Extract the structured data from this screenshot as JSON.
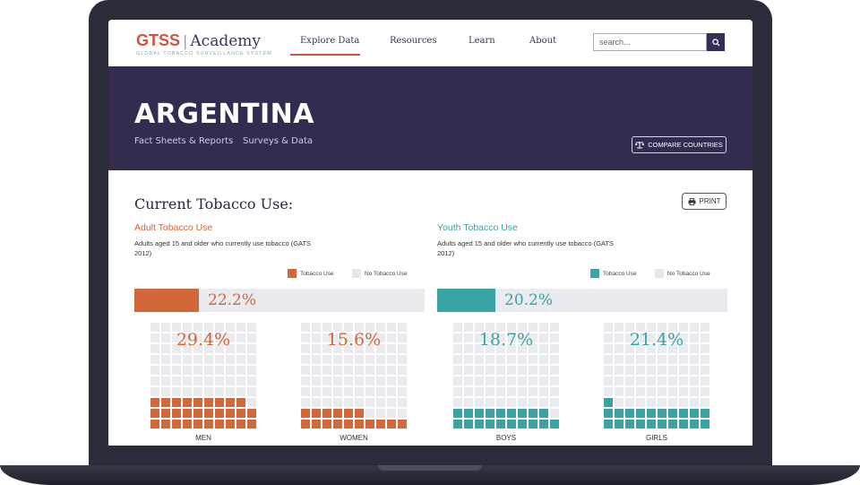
{
  "header": {
    "logo_gtss": "GTSS",
    "logo_academy": "Academy",
    "logo_subtitle": "GLOBAL TOBACCO SURVEILLANCE SYSTEM",
    "nav": [
      {
        "label": "Explore Data",
        "active": true
      },
      {
        "label": "Resources",
        "active": false
      },
      {
        "label": "Learn",
        "active": false
      },
      {
        "label": "About",
        "active": false
      }
    ],
    "search_placeholder": "search..."
  },
  "banner": {
    "country": "ARGENTINA",
    "links": [
      "Fact Sheets & Reports",
      "Surveys & Data"
    ],
    "compare_label": "COMPARE COUNTRIES"
  },
  "content": {
    "title": "Current Tobacco Use:",
    "print_label": "PRINT",
    "adult": {
      "title": "Adult Tobacco Use",
      "description": "Adults aged 15 and older who currently use tobacco (GATS 2012)",
      "legend_use": "Tobacco Use",
      "legend_no_use": "No Tobacco Use",
      "overall_value": "22.2%",
      "overall_fraction": 0.222,
      "groups": [
        {
          "label": "MEN",
          "value": "29.4%",
          "cells": 29
        },
        {
          "label": "WOMEN",
          "value": "15.6%",
          "cells": 16
        }
      ]
    },
    "youth": {
      "title": "Youth Tobacco Use",
      "description": "Adults aged 15 and older who currently use tobacco (GATS 2012)",
      "legend_use": "Tobacco Use",
      "legend_no_use": "No Tobacco Use",
      "overall_value": "20.2%",
      "overall_fraction": 0.202,
      "groups": [
        {
          "label": "BOYS",
          "value": "18.7%",
          "cells": 19
        },
        {
          "label": "GIRLS",
          "value": "21.4%",
          "cells": 21
        }
      ]
    }
  },
  "colors": {
    "adult": "#d2683a",
    "youth": "#3aa3a3",
    "empty": "#e9ebee",
    "banner": "#332c4f",
    "accent": "#d4533f"
  }
}
